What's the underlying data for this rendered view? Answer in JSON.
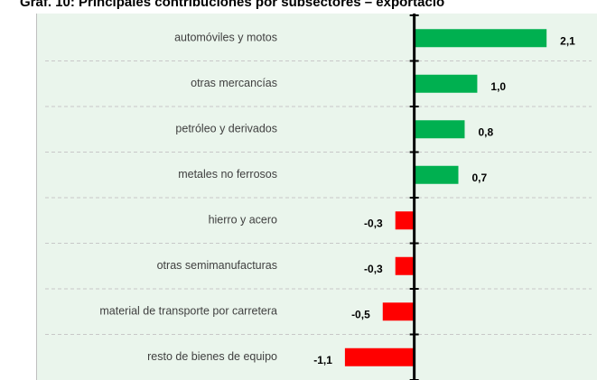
{
  "chart_data": {
    "type": "barh",
    "title": "Gráf. 10: Principales contribuciones por subsectores – exportacio",
    "categories": [
      "automóviles y motos",
      "otras mercancías",
      "petróleo y derivados",
      "metales no ferrosos",
      "hierro y acero",
      "otras semimanufacturas",
      "material de transporte por carretera",
      "resto de bienes de equipo"
    ],
    "values": [
      2.1,
      1.0,
      0.8,
      0.7,
      -0.3,
      -0.3,
      -0.5,
      -1.1
    ],
    "value_labels": [
      "2,1",
      "1,0",
      "0,8",
      "0,7",
      "-0,3",
      "-0,3",
      "-0,5",
      "-1,1"
    ],
    "positive_color": "#00b050",
    "negative_color": "#ff0000",
    "xlim": [
      -6,
      2.9
    ]
  }
}
